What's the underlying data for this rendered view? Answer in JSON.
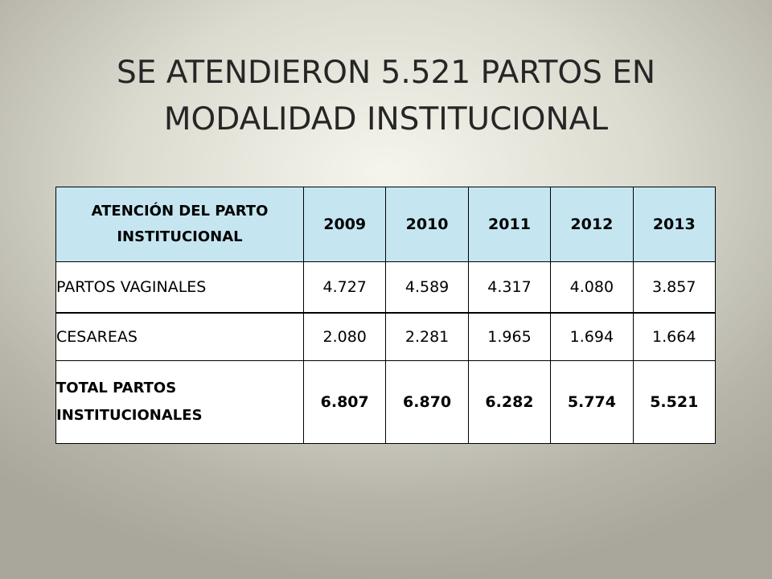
{
  "slide": {
    "title_line1": "SE ATENDIERON 5.521 PARTOS EN",
    "title_line2": "MODALIDAD INSTITUCIONAL"
  },
  "table": {
    "header_label": "ATENCIÓN DEL PARTO\nINSTITUCIONAL",
    "years": [
      "2009",
      "2010",
      "2011",
      "2012",
      "2013"
    ],
    "rows": [
      {
        "label": "PARTOS VAGINALES",
        "values": [
          "4.727",
          "4.589",
          "4.317",
          "4.080",
          "3.857"
        ]
      },
      {
        "label": "CESAREAS",
        "values": [
          "2.080",
          "2.281",
          "1.965",
          "1.694",
          "1.664"
        ]
      },
      {
        "label": "TOTAL PARTOS\nINSTITUCIONALES",
        "values": [
          "6.807",
          "6.870",
          "6.282",
          "5.774",
          "5.521"
        ]
      }
    ]
  },
  "colors": {
    "header_fill": "#c5e6f1",
    "title_text": "#262626"
  }
}
